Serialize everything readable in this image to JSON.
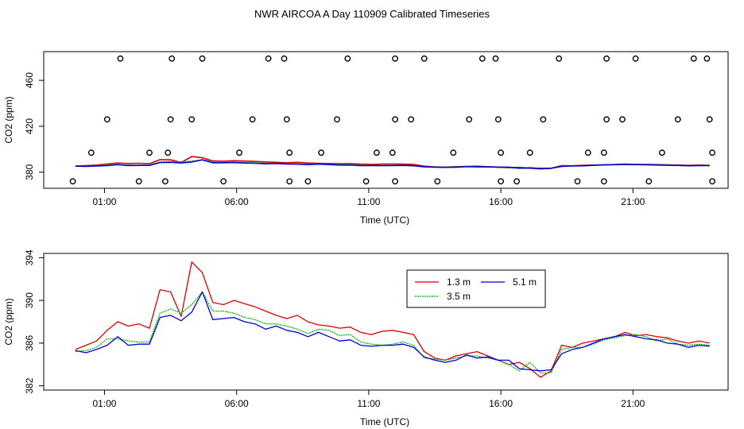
{
  "title": "NWR AIRCOA A  Day 110909  Calibrated Timeseries",
  "colors": {
    "h13": "#dd0000",
    "h35": "#00bb00",
    "h51": "#0000dd",
    "frame": "#000000"
  },
  "chart_data": [
    {
      "type": "scatter+line",
      "name": "top-panel",
      "title": "",
      "xlabel": "Time (UTC)",
      "ylabel": "CO2 (ppm)",
      "xlim": [
        -1.3,
        24.6
      ],
      "ylim": [
        366,
        485
      ],
      "xticks": [
        1,
        6,
        11,
        16,
        21
      ],
      "xtick_labels": [
        "01:00",
        "06:00",
        "11:00",
        "16:00",
        "21:00"
      ],
      "yticks": [
        380,
        420,
        460
      ],
      "yticks_secondary": [
        380,
        420,
        460
      ],
      "ytick_labels": [
        "380",
        "420",
        "460"
      ],
      "ylabel_ticks_full": [
        "380",
        "420",
        "460"
      ],
      "calibration_points": [
        {
          "x": -0.2,
          "y": 372
        },
        {
          "x": 0.5,
          "y": 397
        },
        {
          "x": 1.1,
          "y": 426
        },
        {
          "x": 1.6,
          "y": 479
        },
        {
          "x": 2.3,
          "y": 372
        },
        {
          "x": 2.7,
          "y": 397
        },
        {
          "x": 3.3,
          "y": 372
        },
        {
          "x": 3.4,
          "y": 397
        },
        {
          "x": 3.5,
          "y": 426
        },
        {
          "x": 3.55,
          "y": 479
        },
        {
          "x": 4.3,
          "y": 426
        },
        {
          "x": 4.7,
          "y": 479
        },
        {
          "x": 5.5,
          "y": 372
        },
        {
          "x": 6.1,
          "y": 397
        },
        {
          "x": 6.6,
          "y": 426
        },
        {
          "x": 7.2,
          "y": 479
        },
        {
          "x": 7.8,
          "y": 479
        },
        {
          "x": 7.9,
          "y": 426
        },
        {
          "x": 8.0,
          "y": 397
        },
        {
          "x": 8.0,
          "y": 372
        },
        {
          "x": 8.7,
          "y": 372
        },
        {
          "x": 9.2,
          "y": 397
        },
        {
          "x": 9.8,
          "y": 426
        },
        {
          "x": 10.2,
          "y": 479
        },
        {
          "x": 10.9,
          "y": 372
        },
        {
          "x": 11.3,
          "y": 397
        },
        {
          "x": 11.9,
          "y": 397
        },
        {
          "x": 12.0,
          "y": 372
        },
        {
          "x": 12.0,
          "y": 426
        },
        {
          "x": 12.0,
          "y": 479
        },
        {
          "x": 12.6,
          "y": 426
        },
        {
          "x": 13.1,
          "y": 479
        },
        {
          "x": 13.6,
          "y": 372
        },
        {
          "x": 14.2,
          "y": 397
        },
        {
          "x": 14.8,
          "y": 426
        },
        {
          "x": 15.3,
          "y": 479
        },
        {
          "x": 15.8,
          "y": 479
        },
        {
          "x": 15.9,
          "y": 426
        },
        {
          "x": 16.0,
          "y": 397
        },
        {
          "x": 16.0,
          "y": 372
        },
        {
          "x": 16.6,
          "y": 372
        },
        {
          "x": 17.1,
          "y": 397
        },
        {
          "x": 17.6,
          "y": 426
        },
        {
          "x": 18.2,
          "y": 479
        },
        {
          "x": 18.9,
          "y": 372
        },
        {
          "x": 19.3,
          "y": 397
        },
        {
          "x": 19.9,
          "y": 397
        },
        {
          "x": 19.9,
          "y": 372
        },
        {
          "x": 20.0,
          "y": 426
        },
        {
          "x": 20.0,
          "y": 479
        },
        {
          "x": 20.6,
          "y": 426
        },
        {
          "x": 21.1,
          "y": 479
        },
        {
          "x": 21.6,
          "y": 372
        },
        {
          "x": 22.1,
          "y": 397
        },
        {
          "x": 22.7,
          "y": 426
        },
        {
          "x": 23.3,
          "y": 479
        },
        {
          "x": 23.8,
          "y": 479
        },
        {
          "x": 23.9,
          "y": 426
        },
        {
          "x": 24.0,
          "y": 397
        },
        {
          "x": 24.0,
          "y": 372
        }
      ]
    },
    {
      "type": "line",
      "name": "bottom-panel",
      "title": "",
      "xlabel": "Time (UTC)",
      "ylabel": "CO2 (ppm)",
      "xlim": [
        -1.3,
        24.6
      ],
      "ylim": [
        381.6,
        394.4
      ],
      "xticks": [
        1,
        6,
        11,
        16,
        21
      ],
      "xtick_labels": [
        "01:00",
        "06:00",
        "11:00",
        "16:00",
        "21:00"
      ],
      "yticks": [
        382,
        386,
        390,
        394
      ],
      "ytick_labels": [
        "382",
        "386",
        "390",
        "394"
      ],
      "legend": {
        "position": "upper-middle",
        "entries": [
          "1.3 m",
          "5.1 m",
          "3.5 m"
        ]
      },
      "x": [
        -0.1,
        0.3,
        0.7,
        1.1,
        1.5,
        1.9,
        2.3,
        2.7,
        3.1,
        3.5,
        3.9,
        4.3,
        4.7,
        5.1,
        5.5,
        5.9,
        6.3,
        6.7,
        7.1,
        7.5,
        7.9,
        8.3,
        8.7,
        9.1,
        9.5,
        9.9,
        10.3,
        10.7,
        11.1,
        11.5,
        11.9,
        12.3,
        12.7,
        13.1,
        13.5,
        13.9,
        14.3,
        14.7,
        15.1,
        15.5,
        15.9,
        16.3,
        16.7,
        17.1,
        17.5,
        17.9,
        18.3,
        18.7,
        19.1,
        19.5,
        19.9,
        20.3,
        20.7,
        21.1,
        21.5,
        21.9,
        22.3,
        22.7,
        23.1,
        23.5,
        23.9
      ],
      "series": [
        {
          "name": "1.3 m",
          "values": [
            385.4,
            385.8,
            386.2,
            387.2,
            388.0,
            387.6,
            387.8,
            387.4,
            391.0,
            390.8,
            388.5,
            393.6,
            392.6,
            389.8,
            389.6,
            390.0,
            389.7,
            389.4,
            389.0,
            388.6,
            388.3,
            388.6,
            388.0,
            387.7,
            387.6,
            387.4,
            387.5,
            387.0,
            386.8,
            387.1,
            387.2,
            387.0,
            386.8,
            385.2,
            384.6,
            384.4,
            384.8,
            385.0,
            385.2,
            384.8,
            384.4,
            384.0,
            384.2,
            383.6,
            382.8,
            383.4,
            385.8,
            385.6,
            386.0,
            386.2,
            386.4,
            386.6,
            387.0,
            386.7,
            386.8,
            386.6,
            386.5,
            386.2,
            386.0,
            386.2,
            386.0
          ]
        },
        {
          "name": "3.5 m",
          "values": [
            385.2,
            385.3,
            385.6,
            386.4,
            386.4,
            386.2,
            386.1,
            386.1,
            388.8,
            389.2,
            388.8,
            389.6,
            390.8,
            389.0,
            389.0,
            388.8,
            388.4,
            388.2,
            387.8,
            387.8,
            387.6,
            387.3,
            386.9,
            387.3,
            387.2,
            386.7,
            386.8,
            386.1,
            385.9,
            385.8,
            385.9,
            386.1,
            385.8,
            384.6,
            384.5,
            384.4,
            384.6,
            384.8,
            384.8,
            384.6,
            384.4,
            384.0,
            383.4,
            384.2,
            383.2,
            383.2,
            385.4,
            385.6,
            385.6,
            385.9,
            386.3,
            386.5,
            386.7,
            386.8,
            386.6,
            386.2,
            386.4,
            385.9,
            385.8,
            385.9,
            385.8
          ]
        },
        {
          "name": "5.1 m",
          "values": [
            385.3,
            385.1,
            385.4,
            385.8,
            386.6,
            385.8,
            385.9,
            385.9,
            388.4,
            388.6,
            388.1,
            388.9,
            390.8,
            388.2,
            388.3,
            388.4,
            388.0,
            387.8,
            387.3,
            387.6,
            387.2,
            387.0,
            386.6,
            387.0,
            386.6,
            386.2,
            386.3,
            385.8,
            385.7,
            385.8,
            385.8,
            385.9,
            385.6,
            384.7,
            384.4,
            384.2,
            384.4,
            384.9,
            384.6,
            384.7,
            384.4,
            384.4,
            383.6,
            383.5,
            383.4,
            383.5,
            385.0,
            385.4,
            385.6,
            386.0,
            386.4,
            386.6,
            386.8,
            386.6,
            386.4,
            386.3,
            386.0,
            385.9,
            385.6,
            385.8,
            385.7
          ]
        }
      ]
    }
  ]
}
